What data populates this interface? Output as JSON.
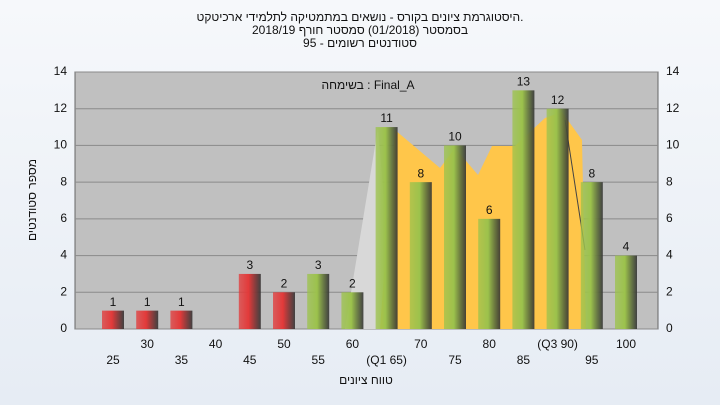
{
  "chart_data": {
    "type": "bar",
    "title_lines": [
      "היסטוגרמת ציונים בקורס - נושאים במתמטיקה לתלמידי ארכיטקט.",
      "בסמסטר  (01/2018)  סמסטר חורף  2018/19",
      "סטודנטים רשומים - 95"
    ],
    "annotation": "בשימחה : Final_A",
    "x_label": "טווח ציונים",
    "y_label": "מספר סטודנטים",
    "categories": [
      "25",
      "30",
      "35",
      "40",
      "45",
      "50",
      "55",
      "60",
      "(Q1 65)",
      "70",
      "75",
      "80",
      "85",
      "(Q3 90)",
      "95",
      "100"
    ],
    "values": [
      1,
      1,
      1,
      null,
      3,
      2,
      3,
      2,
      11,
      8,
      10,
      6,
      13,
      12,
      8,
      4
    ],
    "colors": [
      "#e23a3a",
      "#e23a3a",
      "#e23a3a",
      null,
      "#e23a3a",
      "#e23a3a",
      "#9cc24c",
      "#9cc24c",
      "#9cc24c",
      "#9cc24c",
      "#9cc24c",
      "#9cc24c",
      "#9cc24c",
      "#9cc24c",
      "#9cc24c",
      "#9cc24c"
    ],
    "ylim": [
      0,
      14
    ],
    "yticks": [
      0,
      2,
      4,
      6,
      8,
      10,
      12,
      14
    ],
    "grid": true
  }
}
